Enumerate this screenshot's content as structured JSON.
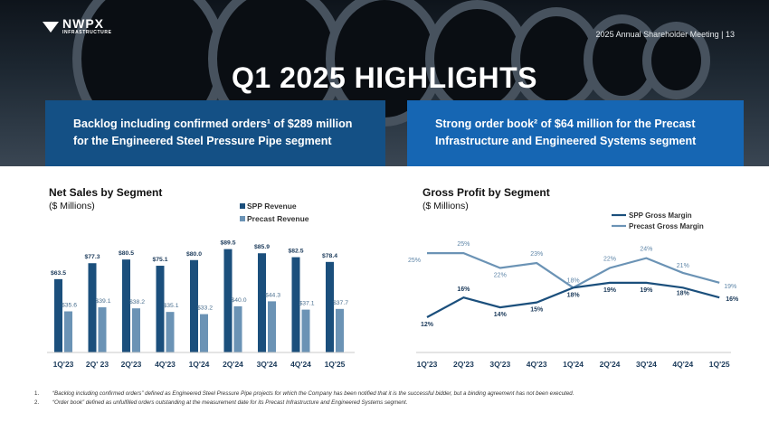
{
  "header": {
    "logo_name": "NWPX",
    "logo_sub": "INFRASTRUCTURE",
    "meeting": "2025 Annual Shareholder Meeting | 13",
    "title": "Q1 2025 HIGHLIGHTS"
  },
  "highlights": {
    "left_line1": "Backlog including confirmed orders¹ of $289 million",
    "left_line2": "for the Engineered Steel Pressure Pipe segment",
    "right_line1": "Strong order book² of $64 million for the Precast",
    "right_line2": "Infrastructure and Engineered Systems segment"
  },
  "colors": {
    "spp": "#1b4f7c",
    "precast": "#6b93b5",
    "box_left": "#145085",
    "box_right": "#1666b3"
  },
  "chart_data": [
    {
      "type": "bar",
      "title": "Net Sales by Segment",
      "subtitle": "($ Millions)",
      "categories": [
        "1Q'23",
        "2Q' 23",
        "2Q'23",
        "4Q'23",
        "1Q'24",
        "2Q'24",
        "3Q'24",
        "4Q'24",
        "1Q'25"
      ],
      "series": [
        {
          "name": "SPP Revenue",
          "values": [
            63.5,
            77.3,
            80.5,
            75.1,
            80.0,
            89.5,
            85.9,
            82.5,
            78.4
          ],
          "labels": [
            "$63.5",
            "$77.3",
            "$80.5",
            "$75.1",
            "$80.0",
            "$89.5",
            "$85.9",
            "$82.5",
            "$78.4"
          ]
        },
        {
          "name": "Precast Revenue",
          "values": [
            35.6,
            39.1,
            38.2,
            35.1,
            33.2,
            40.0,
            44.3,
            37.1,
            37.7
          ],
          "labels": [
            "$35.6",
            "$39.1",
            "$38.2",
            "$35.1",
            "$33.2",
            "$40.0",
            "$44.3",
            "$37.1",
            "$37.7"
          ]
        }
      ],
      "ylim": [
        0,
        90
      ],
      "legend": "top-right"
    },
    {
      "type": "line",
      "title": "Gross Profit by Segment",
      "subtitle": "($ Millions)",
      "categories": [
        "1Q'23",
        "2Q'23",
        "3Q'23",
        "4Q'23",
        "1Q'24",
        "2Q'24",
        "3Q'24",
        "4Q'24",
        "1Q'25"
      ],
      "series": [
        {
          "name": "SPP Gross Margin",
          "values": [
            12,
            16,
            14,
            15,
            18,
            19,
            19,
            18,
            16
          ],
          "labels": [
            "12%",
            "16%",
            "14%",
            "15%",
            "18%",
            "19%",
            "19%",
            "18%",
            "16%"
          ]
        },
        {
          "name": "Precast Gross Margin",
          "values": [
            25,
            25,
            22,
            23,
            18,
            22,
            24,
            21,
            19
          ],
          "labels": [
            "25%",
            "25%",
            "22%",
            "23%",
            "18%",
            "22%",
            "24%",
            "21%",
            "19%"
          ]
        }
      ],
      "legend": "top-right"
    }
  ],
  "footnotes": [
    {
      "num": "1.",
      "text": "“Backlog including confirmed orders” defined as Engineered Steel Pressure Pipe projects for which the Company has been notified that it is the successful bidder, but a binding agreement has not been executed."
    },
    {
      "num": "2.",
      "text": "“Order book” defined as unfulfilled orders outstanding at the measurement date for its Precast Infrastructure and Engineered Systems segment."
    }
  ]
}
